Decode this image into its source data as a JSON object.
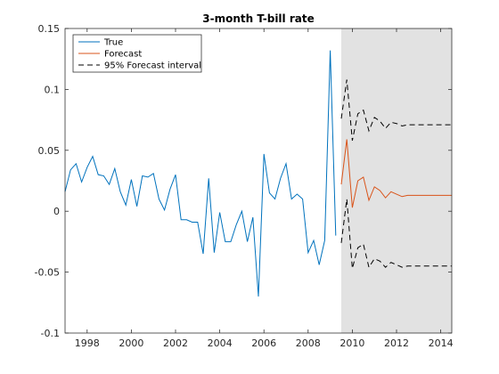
{
  "chart_data": {
    "type": "line",
    "title": "3-month T-bill rate",
    "xlabel": "",
    "ylabel": "",
    "xlim": [
      1997,
      2014.5
    ],
    "ylim": [
      -0.1,
      0.15
    ],
    "x_ticks": [
      1998,
      2000,
      2002,
      2004,
      2006,
      2008,
      2010,
      2012,
      2014
    ],
    "y_ticks": [
      -0.1,
      -0.05,
      0,
      0.05,
      0.1,
      0.15
    ],
    "y_tick_labels": [
      "-0.1",
      "-0.05",
      "0",
      "0.05",
      "0.1",
      "0.15"
    ],
    "forecast_region": [
      2009.5,
      2014.5
    ],
    "legend_position": "top-left",
    "colors": {
      "true": "#0072BD",
      "forecast": "#D95319",
      "interval": "#000000",
      "shade": "#E2E2E2"
    },
    "series": [
      {
        "name": "True",
        "style": "solid",
        "x": [
          1997.0,
          1997.25,
          1997.5,
          1997.75,
          1998.0,
          1998.25,
          1998.5,
          1998.75,
          1999.0,
          1999.25,
          1999.5,
          1999.75,
          2000.0,
          2000.25,
          2000.5,
          2000.75,
          2001.0,
          2001.25,
          2001.5,
          2001.75,
          2002.0,
          2002.25,
          2002.5,
          2002.75,
          2003.0,
          2003.25,
          2003.5,
          2003.75,
          2004.0,
          2004.25,
          2004.5,
          2004.75,
          2005.0,
          2005.25,
          2005.5,
          2005.75,
          2006.0,
          2006.25,
          2006.5,
          2006.75,
          2007.0,
          2007.25,
          2007.5,
          2007.75,
          2008.0,
          2008.25,
          2008.5,
          2008.75,
          2009.0,
          2009.25
        ],
        "values": [
          0.016,
          0.034,
          0.039,
          0.024,
          0.036,
          0.045,
          0.03,
          0.029,
          0.022,
          0.035,
          0.016,
          0.005,
          0.026,
          0.004,
          0.029,
          0.028,
          0.031,
          0.01,
          0.001,
          0.018,
          0.03,
          -0.007,
          -0.007,
          -0.009,
          -0.009,
          -0.035,
          0.027,
          -0.034,
          -0.001,
          -0.025,
          -0.025,
          -0.011,
          0.0,
          -0.025,
          -0.005,
          -0.07,
          0.047,
          0.015,
          0.01,
          0.027,
          0.039,
          0.01,
          0.014,
          0.01,
          -0.034,
          -0.024,
          -0.044,
          -0.024,
          0.132,
          -0.02
        ]
      },
      {
        "name": "Forecast",
        "style": "solid",
        "x": [
          2009.5,
          2009.75,
          2010.0,
          2010.25,
          2010.5,
          2010.75,
          2011.0,
          2011.25,
          2011.5,
          2011.75,
          2012.0,
          2012.25,
          2012.5,
          2012.75,
          2013.0,
          2013.25,
          2013.5,
          2013.75,
          2014.0,
          2014.25,
          2014.5
        ],
        "values": [
          0.022,
          0.059,
          0.003,
          0.025,
          0.028,
          0.009,
          0.02,
          0.017,
          0.011,
          0.016,
          0.014,
          0.012,
          0.013,
          0.013,
          0.013,
          0.013,
          0.013,
          0.013,
          0.013,
          0.013,
          0.013
        ]
      },
      {
        "name": "95% Forecast interval",
        "style": "dashed",
        "x": [
          2009.5,
          2009.75,
          2010.0,
          2010.25,
          2010.5,
          2010.75,
          2011.0,
          2011.25,
          2011.5,
          2011.75,
          2012.0,
          2012.25,
          2012.5,
          2012.75,
          2013.0,
          2013.25,
          2013.5,
          2013.75,
          2014.0,
          2014.25,
          2014.5
        ],
        "upper": [
          0.076,
          0.108,
          0.058,
          0.08,
          0.083,
          0.066,
          0.077,
          0.074,
          0.068,
          0.073,
          0.072,
          0.07,
          0.071,
          0.071,
          0.071,
          0.071,
          0.071,
          0.071,
          0.071,
          0.071,
          0.071
        ],
        "lower": [
          -0.026,
          0.01,
          -0.047,
          -0.03,
          -0.027,
          -0.046,
          -0.039,
          -0.041,
          -0.046,
          -0.042,
          -0.044,
          -0.046,
          -0.045,
          -0.045,
          -0.045,
          -0.045,
          -0.045,
          -0.045,
          -0.045,
          -0.045,
          -0.045
        ]
      }
    ]
  }
}
